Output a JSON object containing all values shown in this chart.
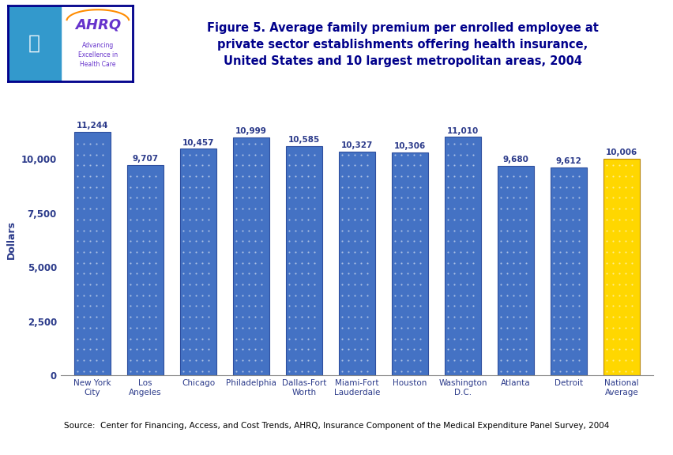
{
  "categories": [
    "New York\nCity",
    "Los\nAngeles",
    "Chicago",
    "Philadelphia",
    "Dallas-Fort\nWorth",
    "Miami-Fort\nLauderdale",
    "Houston",
    "Washington\nD.C.",
    "Atlanta",
    "Detroit",
    "National\nAverage"
  ],
  "values": [
    11244,
    9707,
    10457,
    10999,
    10585,
    10327,
    10306,
    11010,
    9680,
    9612,
    10006
  ],
  "bar_colors": [
    "#4472C4",
    "#4472C4",
    "#4472C4",
    "#4472C4",
    "#4472C4",
    "#4472C4",
    "#4472C4",
    "#4472C4",
    "#4472C4",
    "#4472C4",
    "#FFD700"
  ],
  "bar_edge_colors": [
    "#2F4F9F",
    "#2F4F9F",
    "#2F4F9F",
    "#2F4F9F",
    "#2F4F9F",
    "#2F4F9F",
    "#2F4F9F",
    "#2F4F9F",
    "#2F4F9F",
    "#2F4F9F",
    "#B8860B"
  ],
  "value_labels": [
    "11,244",
    "9,707",
    "10,457",
    "10,999",
    "10,585",
    "10,327",
    "10,306",
    "11,010",
    "9,680",
    "9,612",
    "10,006"
  ],
  "title_line1": "Figure 5. Average family premium per enrolled employee at",
  "title_line2": "private sector establishments offering health insurance,",
  "title_line3": "United States and 10 largest metropolitan areas, 2004",
  "ylabel": "Dollars",
  "ylim": [
    0,
    12500
  ],
  "yticks": [
    0,
    2500,
    5000,
    7500,
    10000
  ],
  "ytick_labels": [
    "0",
    "2,500",
    "5,000",
    "7,500",
    "10,000"
  ],
  "source_text": "Source:  Center for Financing, Access, and Cost Trends, AHRQ, Insurance Component of the Medical Expenditure Panel Survey, 2004",
  "title_color": "#00008B",
  "label_color": "#2B3A8A",
  "axis_label_color": "#2B3A8A",
  "background_color": "#FFFFFF",
  "header_bar_color": "#00008B",
  "label_fontsize": 7.5,
  "value_fontsize": 7.5,
  "ylabel_fontsize": 9,
  "title_fontsize": 10.5,
  "logo_box_color": "#3399CC",
  "logo_text_color": "#6633CC",
  "logo_sub_color": "#6633CC"
}
